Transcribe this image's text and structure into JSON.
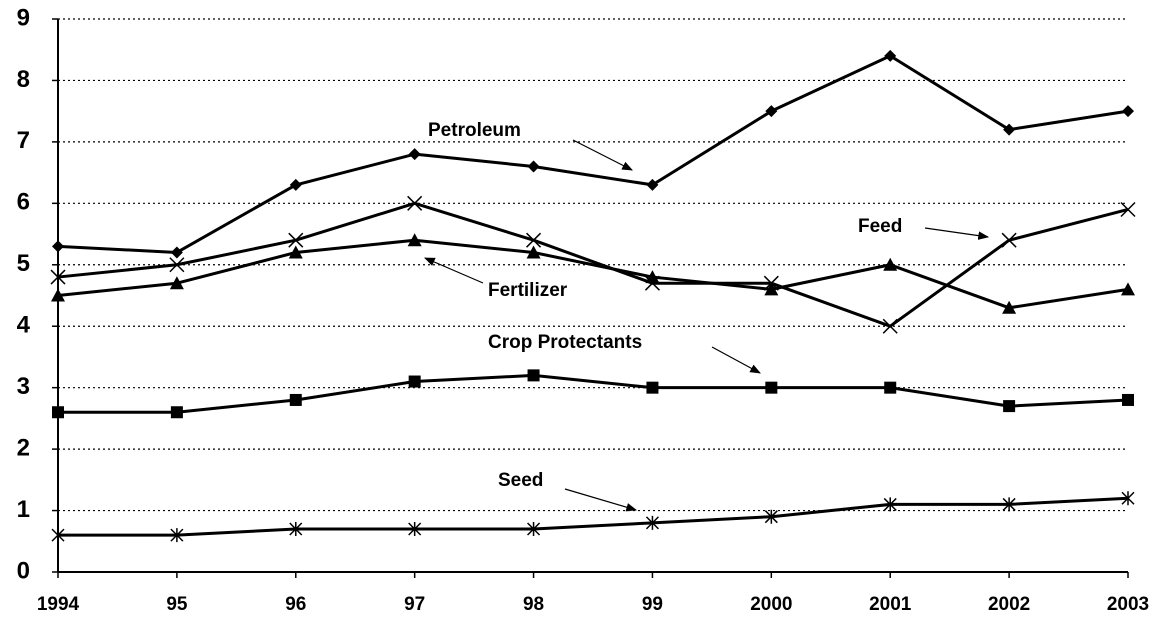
{
  "chart_data": {
    "type": "line",
    "categories": [
      "1994",
      "95",
      "96",
      "97",
      "98",
      "99",
      "2000",
      "2001",
      "2002",
      "2003"
    ],
    "series": [
      {
        "name": "Petroleum",
        "color": "#000000",
        "marker": "diamond",
        "values": [
          5.3,
          5.2,
          6.3,
          6.8,
          6.6,
          6.3,
          7.5,
          8.4,
          7.2,
          7.5
        ]
      },
      {
        "name": "Feed",
        "color": "#000000",
        "marker": "x",
        "values": [
          4.8,
          5.0,
          5.4,
          6.0,
          5.4,
          4.7,
          4.7,
          4.0,
          5.4,
          5.9
        ]
      },
      {
        "name": "Fertilizer",
        "color": "#000000",
        "marker": "triangle",
        "values": [
          4.5,
          4.7,
          5.2,
          5.4,
          5.2,
          4.8,
          4.6,
          5.0,
          4.3,
          4.6
        ]
      },
      {
        "name": "Crop Protectants",
        "color": "#000000",
        "marker": "square",
        "values": [
          2.6,
          2.6,
          2.8,
          3.1,
          3.2,
          3.0,
          3.0,
          3.0,
          2.7,
          2.8
        ]
      },
      {
        "name": "Seed",
        "color": "#000000",
        "marker": "asterisk",
        "values": [
          0.6,
          0.6,
          0.7,
          0.7,
          0.7,
          0.8,
          0.9,
          1.1,
          1.1,
          1.2
        ]
      }
    ],
    "ylim": [
      0,
      9
    ],
    "yticks": [
      0,
      1,
      2,
      3,
      4,
      5,
      6,
      7,
      8,
      9
    ],
    "grid": true
  }
}
